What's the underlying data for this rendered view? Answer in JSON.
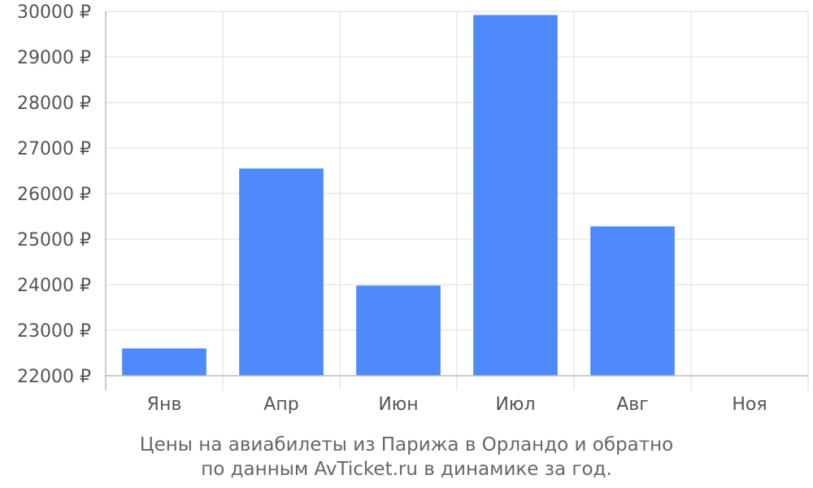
{
  "chart_data": {
    "type": "bar",
    "categories": [
      "Янв",
      "Апр",
      "Июн",
      "Июл",
      "Авг",
      "Ноя"
    ],
    "values": [
      22600,
      26550,
      23980,
      29920,
      25280,
      null
    ],
    "ylim": [
      22000,
      30000
    ],
    "yticks": [
      22000,
      23000,
      24000,
      25000,
      26000,
      27000,
      28000,
      29000,
      30000
    ],
    "ytick_suffix": " ₽",
    "grid": true,
    "bar_color": "#4e8afc",
    "title": ""
  },
  "caption": {
    "line1": "Цены на авиабилеты из Парижа в Орландо и обратно",
    "line2": "по данным AvTicket.ru в динамике за год."
  }
}
